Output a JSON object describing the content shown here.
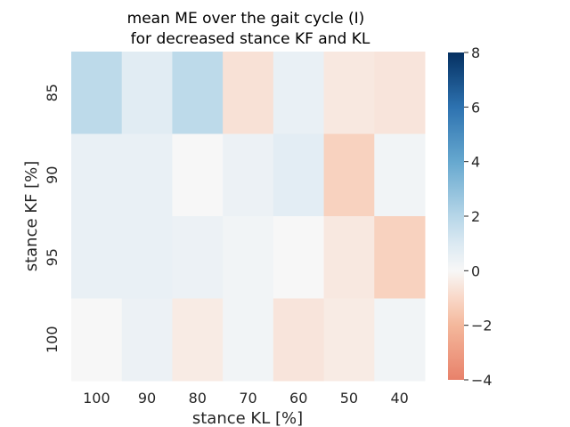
{
  "chart_data": {
    "type": "heatmap",
    "title_line1": "mean ME over the gait cycle (I)",
    "title_line2": "for decreased stance KF and KL",
    "xlabel": "stance KL [%]",
    "ylabel": "stance KF [%]",
    "x_categories": [
      "100",
      "90",
      "80",
      "70",
      "60",
      "50",
      "40"
    ],
    "y_categories": [
      "85",
      "90",
      "95",
      "100"
    ],
    "values": [
      [
        1.8,
        0.8,
        1.8,
        -0.7,
        0.5,
        -0.5,
        -0.6
      ],
      [
        0.5,
        0.5,
        0.0,
        0.4,
        0.7,
        -1.2,
        0.2
      ],
      [
        0.5,
        0.5,
        0.4,
        0.2,
        0.0,
        -0.5,
        -1.2
      ],
      [
        0.0,
        0.4,
        -0.4,
        0.2,
        -0.6,
        -0.4,
        0.2
      ]
    ],
    "colorbar": {
      "min": -4,
      "max": 8,
      "center": 0,
      "ticks": [
        8,
        6,
        4,
        2,
        0,
        -2,
        -4
      ],
      "tick_labels": [
        "8",
        "6",
        "4",
        "2",
        "0",
        "−2",
        "−4"
      ]
    },
    "colormap": {
      "negative_end": "#e8816a",
      "center": "#f7f7f7",
      "positive_end": "#053061"
    }
  }
}
